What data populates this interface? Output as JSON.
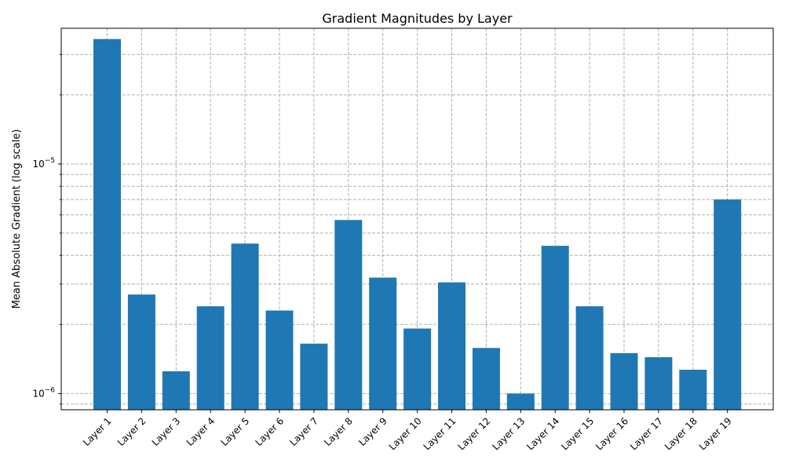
{
  "chart_data": {
    "type": "bar",
    "title": "Gradient Magnitudes by Layer",
    "xlabel": "",
    "ylabel": "Mean Absolute Gradient (log scale)",
    "yscale": "log",
    "ylim": [
      8.5e-07,
      3.9e-05
    ],
    "yticks_major": [
      {
        "value": 1e-06,
        "mantissa": "10",
        "exponent": "−6"
      },
      {
        "value": 1e-05,
        "mantissa": "10",
        "exponent": "−5"
      }
    ],
    "grid": true,
    "grid_style": "dashed",
    "bar_color": "#1f77b4",
    "categories": [
      "Layer 1",
      "Layer 2",
      "Layer 3",
      "Layer 4",
      "Layer 5",
      "Layer 6",
      "Layer 7",
      "Layer 8",
      "Layer 9",
      "Layer 10",
      "Layer 11",
      "Layer 12",
      "Layer 13",
      "Layer 14",
      "Layer 15",
      "Layer 16",
      "Layer 17",
      "Layer 18",
      "Layer 19"
    ],
    "values": [
      3.5e-05,
      2.7e-06,
      1.25e-06,
      2.4e-06,
      4.5e-06,
      2.3e-06,
      1.65e-06,
      5.7e-06,
      3.2e-06,
      1.92e-06,
      3.05e-06,
      1.58e-06,
      1e-06,
      4.4e-06,
      2.4e-06,
      1.5e-06,
      1.44e-06,
      1.27e-06,
      7e-06
    ]
  }
}
